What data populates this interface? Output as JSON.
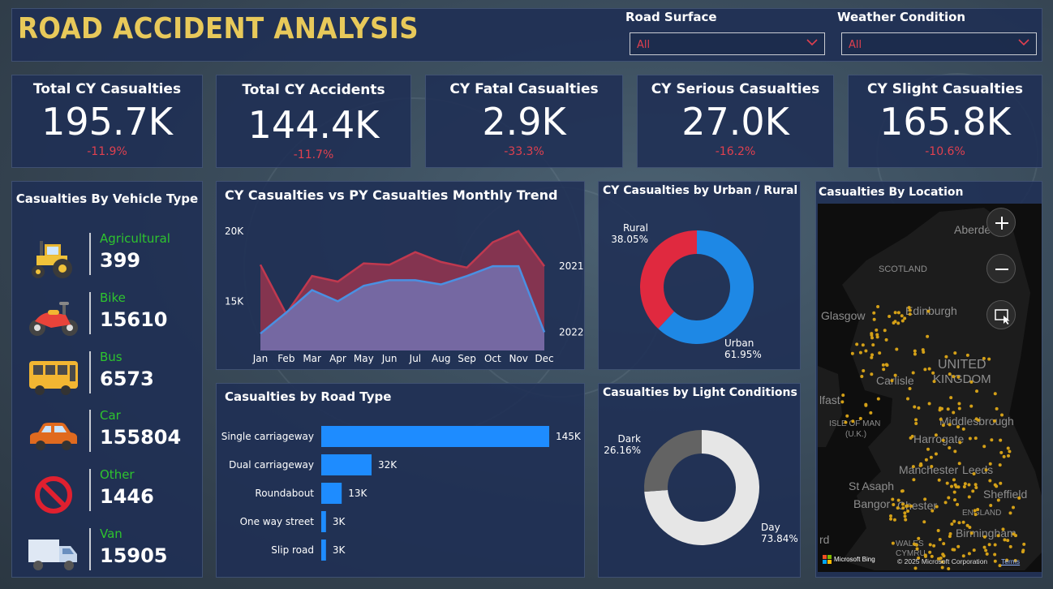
{
  "header": {
    "title": "ROAD ACCIDENT ANALYSIS"
  },
  "filters": [
    {
      "label": "Road Surface",
      "value": "All"
    },
    {
      "label": "Weather Condition",
      "value": "All"
    }
  ],
  "kpis": [
    {
      "title": "Total CY Casualties",
      "value": "195.7K",
      "change": "-11.9%"
    },
    {
      "title": "Total CY Accidents",
      "value": "144.4K",
      "change": "-11.7%"
    },
    {
      "title": "CY Fatal Casualties",
      "value": "2.9K",
      "change": "-33.3%"
    },
    {
      "title": "CY Serious Casualties",
      "value": "27.0K",
      "change": "-16.2%"
    },
    {
      "title": "CY Slight Casualties",
      "value": "165.8K",
      "change": "-10.6%"
    }
  ],
  "vehicle_panel": {
    "title": "Casualties By Vehicle Type",
    "items": [
      {
        "name": "Agricultural",
        "value": "399",
        "icon": "tractor-icon"
      },
      {
        "name": "Bike",
        "value": "15610",
        "icon": "motorbike-icon"
      },
      {
        "name": "Bus",
        "value": "6573",
        "icon": "bus-icon"
      },
      {
        "name": "Car",
        "value": "155804",
        "icon": "car-icon"
      },
      {
        "name": "Other",
        "value": "1446",
        "icon": "no-entry-icon"
      },
      {
        "name": "Van",
        "value": "15905",
        "icon": "van-icon"
      }
    ]
  },
  "chart_data": [
    {
      "type": "area",
      "title": "CY Casualties vs PY Casualties Monthly Trend",
      "categories": [
        "Jan",
        "Feb",
        "Mar",
        "Apr",
        "May",
        "Jun",
        "Jul",
        "Aug",
        "Sep",
        "Oct",
        "Nov",
        "Dec"
      ],
      "series": [
        {
          "name": "2021",
          "values": [
            17600,
            14100,
            16800,
            16400,
            17700,
            17600,
            18500,
            17800,
            17400,
            19200,
            20000,
            17500
          ],
          "color": "#c0394f"
        },
        {
          "name": "2022",
          "values": [
            12700,
            14200,
            15800,
            15000,
            16100,
            16500,
            16500,
            16200,
            16800,
            17500,
            17500,
            12800
          ],
          "color": "#4a90e2"
        }
      ],
      "yticks": [
        "15K",
        "20K"
      ],
      "ylim": [
        11500,
        21200
      ]
    },
    {
      "type": "pie",
      "title": "CY Casualties by Urban / Rural",
      "slices": [
        {
          "label": "Urban",
          "value": 61.95,
          "text": "61.95%",
          "color": "#1e88e5"
        },
        {
          "label": "Rural",
          "value": 38.05,
          "text": "38.05%",
          "color": "#e0293f"
        }
      ]
    },
    {
      "type": "bar",
      "title": "Casualties by Road Type",
      "categories": [
        "Single carriageway",
        "Dual carriageway",
        "Roundabout",
        "One way street",
        "Slip road"
      ],
      "values": [
        145,
        32,
        13,
        3,
        3
      ],
      "labels": [
        "145K",
        "32K",
        "13K",
        "3K",
        "3K"
      ],
      "color": "#1e8cff"
    },
    {
      "type": "pie",
      "title": "Casualties by Light Conditions",
      "slices": [
        {
          "label": "Day",
          "value": 73.84,
          "text": "73.84%",
          "color": "#e6e6e6"
        },
        {
          "label": "Dark",
          "value": 26.16,
          "text": "26.16%",
          "color": "#636363"
        }
      ]
    }
  ],
  "map": {
    "title": "Casualties By Location",
    "labels": [
      "Aberde",
      "SCOTLAND",
      "Glasgow",
      "Edinburgh",
      "UNITED",
      "KINGDOM",
      "Carlisle",
      "lfast",
      "ISLE OF MAN",
      "(U.K.)",
      "Middlesbrough",
      "Harrogate",
      "Manchester",
      "Leeds",
      "St Asaph",
      "Sheffield",
      "Bangor",
      "Chester",
      "ENGLAND",
      "Birmingham",
      "WALES",
      "CYMRU",
      "rd"
    ],
    "attribution": "© 2025 Microsoft Corporation",
    "terms": "Terms",
    "logo": "Microsoft Bing",
    "dot_color": "#d4a017"
  }
}
